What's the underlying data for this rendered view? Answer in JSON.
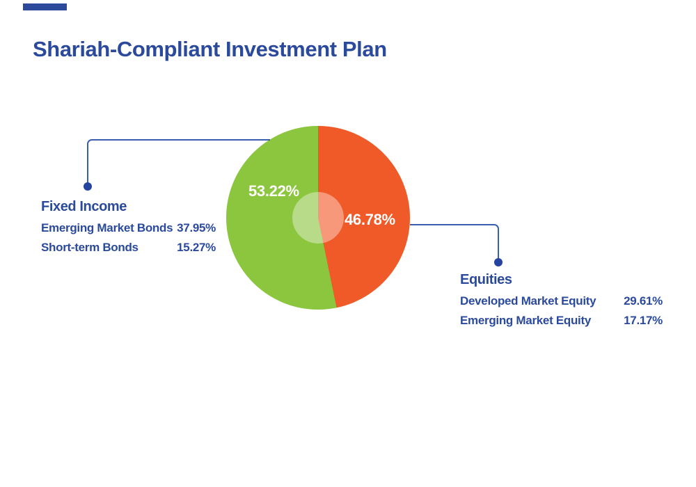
{
  "title": "Shariah-Compliant Investment Plan",
  "colors": {
    "accent": "#2b4a9c",
    "line": "#3a5eae",
    "dot": "#24449f",
    "green": "#8cc63f",
    "orange": "#f05a28",
    "pie_label_text": "#ffffff"
  },
  "pie_labels": {
    "fixed_income": "53.22%",
    "equities": "46.78%"
  },
  "groups": {
    "fixed_income": {
      "title": "Fixed Income",
      "rows": [
        {
          "label": "Emerging Market Bonds",
          "value": "37.95%"
        },
        {
          "label": "Short-term Bonds",
          "value": "15.27%"
        }
      ]
    },
    "equities": {
      "title": "Equities",
      "rows": [
        {
          "label": "Developed Market Equity",
          "value": "29.61%"
        },
        {
          "label": "Emerging Market Equity",
          "value": "17.17%"
        }
      ]
    }
  },
  "chart_data": {
    "type": "pie",
    "title": "Shariah-Compliant Investment Plan",
    "slices": [
      {
        "label": "Equities",
        "value": 46.78,
        "color": "#f05a28",
        "data_label": "46.78%",
        "breakdown": [
          {
            "label": "Developed Market Equity",
            "value": 29.61
          },
          {
            "label": "Emerging Market Equity",
            "value": 17.17
          }
        ]
      },
      {
        "label": "Fixed Income",
        "value": 53.22,
        "color": "#8cc63f",
        "data_label": "53.22%",
        "breakdown": [
          {
            "label": "Emerging Market Bonds",
            "value": 37.95
          },
          {
            "label": "Short-term Bonds",
            "value": 15.27
          }
        ]
      }
    ],
    "start_angle_deg": 0,
    "direction": "clockwise",
    "center_overlay": "translucent white circle, radius ~28% of pie radius",
    "legend_position": "callout labels left and right of pie"
  }
}
